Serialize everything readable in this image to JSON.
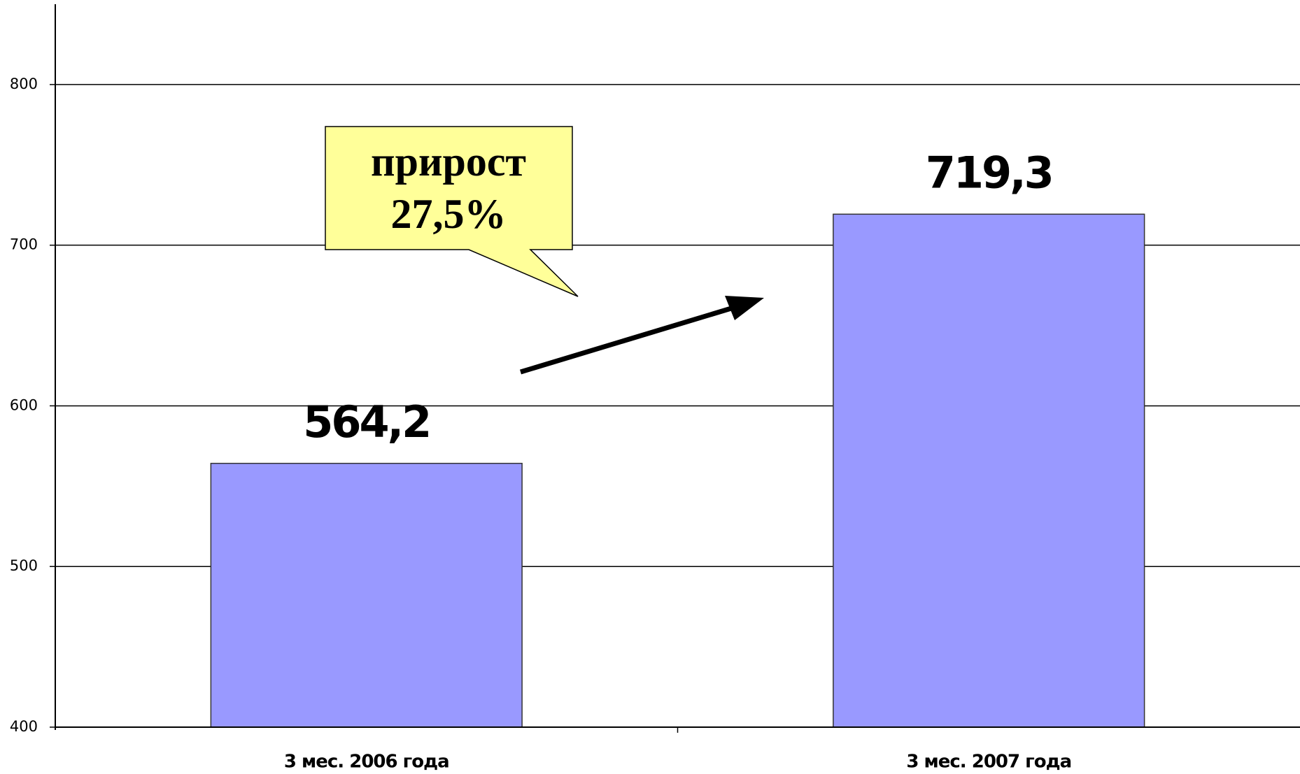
{
  "chart_data": {
    "type": "bar",
    "categories": [
      "3 мес. 2006 года",
      "3 мес. 2007 года"
    ],
    "values": [
      564.2,
      719.3
    ],
    "value_labels": [
      "564,2",
      "719,3"
    ],
    "color": "#9999ff",
    "ylim": [
      400,
      850
    ],
    "yticks": [
      400,
      500,
      600,
      700,
      800
    ],
    "grid": true,
    "annotation": [
      "прирост",
      "27,5%"
    ]
  }
}
